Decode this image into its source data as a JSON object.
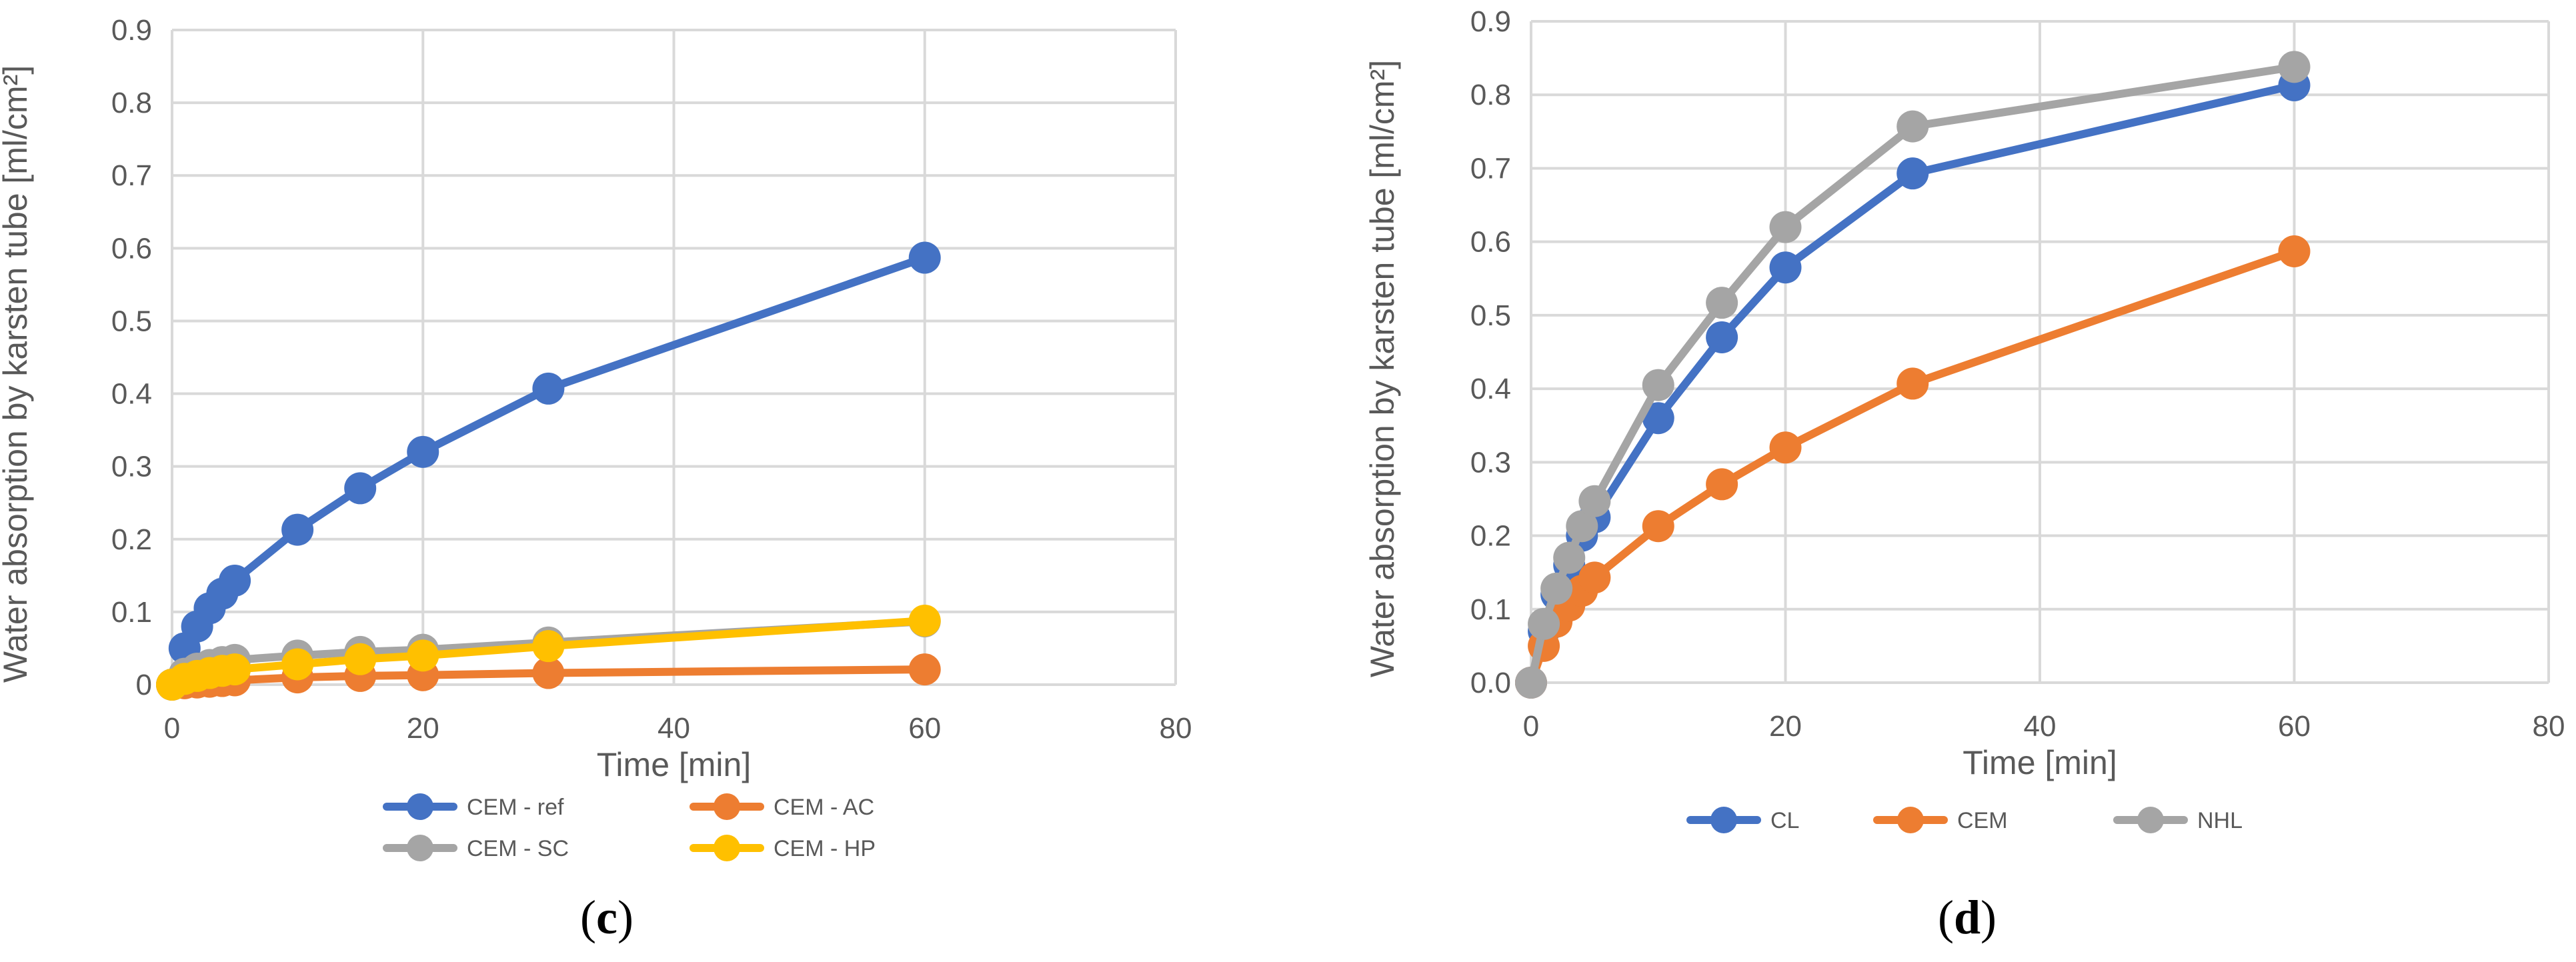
{
  "chart_data": [
    {
      "type": "line",
      "panel_label": "c",
      "xlabel": "Time [min]",
      "ylabel": "Water absorption by karsten tube [ml/cm²]",
      "xlim": [
        0,
        80
      ],
      "ylim": [
        0,
        0.9
      ],
      "xticks": [
        "0",
        "20",
        "40",
        "60",
        "80"
      ],
      "yticks": [
        "0",
        "0.1",
        "0.2",
        "0.3",
        "0.4",
        "0.5",
        "0.6",
        "0.7",
        "0.8",
        "0.9"
      ],
      "grid": true,
      "legend_position": "bottom",
      "series": [
        {
          "name": "CEM - ref",
          "color": "#4472C4",
          "x": [
            0,
            1,
            2,
            3,
            4,
            5,
            10,
            15,
            20,
            30,
            60
          ],
          "y": [
            0,
            0.05,
            0.08,
            0.105,
            0.125,
            0.143,
            0.213,
            0.27,
            0.32,
            0.407,
            0.587
          ]
        },
        {
          "name": "CEM - AC",
          "color": "#ED7D31",
          "x": [
            0,
            1,
            2,
            3,
            4,
            5,
            10,
            15,
            20,
            30,
            60
          ],
          "y": [
            0,
            0.002,
            0.003,
            0.004,
            0.005,
            0.006,
            0.01,
            0.012,
            0.013,
            0.016,
            0.021
          ]
        },
        {
          "name": "CEM - SC",
          "color": "#A5A5A5",
          "x": [
            0,
            1,
            2,
            3,
            4,
            5,
            10,
            15,
            20,
            30,
            60
          ],
          "y": [
            0,
            0.015,
            0.022,
            0.027,
            0.031,
            0.034,
            0.04,
            0.045,
            0.048,
            0.058,
            0.087
          ]
        },
        {
          "name": "CEM - HP",
          "color": "#FFC000",
          "x": [
            0,
            1,
            2,
            3,
            4,
            5,
            10,
            15,
            20,
            30,
            60
          ],
          "y": [
            0,
            0.008,
            0.012,
            0.016,
            0.019,
            0.021,
            0.028,
            0.035,
            0.04,
            0.053,
            0.088
          ]
        }
      ]
    },
    {
      "type": "line",
      "panel_label": "d",
      "xlabel": "Time [min]",
      "ylabel": "Water absorption by karsten tube [ml/cm²]",
      "xlim": [
        0,
        80
      ],
      "ylim": [
        0,
        0.9
      ],
      "xticks": [
        "0",
        "20",
        "40",
        "60",
        "80"
      ],
      "yticks": [
        "0.0",
        "0.1",
        "0.2",
        "0.3",
        "0.4",
        "0.5",
        "0.6",
        "0.7",
        "0.8",
        "0.9"
      ],
      "grid": true,
      "legend_position": "bottom",
      "series": [
        {
          "name": "CL",
          "color": "#4472C4",
          "x": [
            0,
            1,
            2,
            3,
            4,
            5,
            10,
            15,
            20,
            30,
            60
          ],
          "y": [
            0,
            0.07,
            0.12,
            0.16,
            0.2,
            0.225,
            0.36,
            0.47,
            0.565,
            0.693,
            0.813
          ]
        },
        {
          "name": "CEM",
          "color": "#ED7D31",
          "x": [
            0,
            1,
            2,
            3,
            4,
            5,
            10,
            15,
            20,
            30,
            60
          ],
          "y": [
            0,
            0.05,
            0.083,
            0.105,
            0.125,
            0.143,
            0.213,
            0.27,
            0.32,
            0.407,
            0.587
          ]
        },
        {
          "name": "NHL",
          "color": "#A5A5A5",
          "x": [
            0,
            1,
            2,
            3,
            4,
            5,
            10,
            15,
            20,
            30,
            60
          ],
          "y": [
            0,
            0.08,
            0.128,
            0.17,
            0.213,
            0.247,
            0.405,
            0.517,
            0.62,
            0.757,
            0.838
          ]
        }
      ]
    }
  ]
}
